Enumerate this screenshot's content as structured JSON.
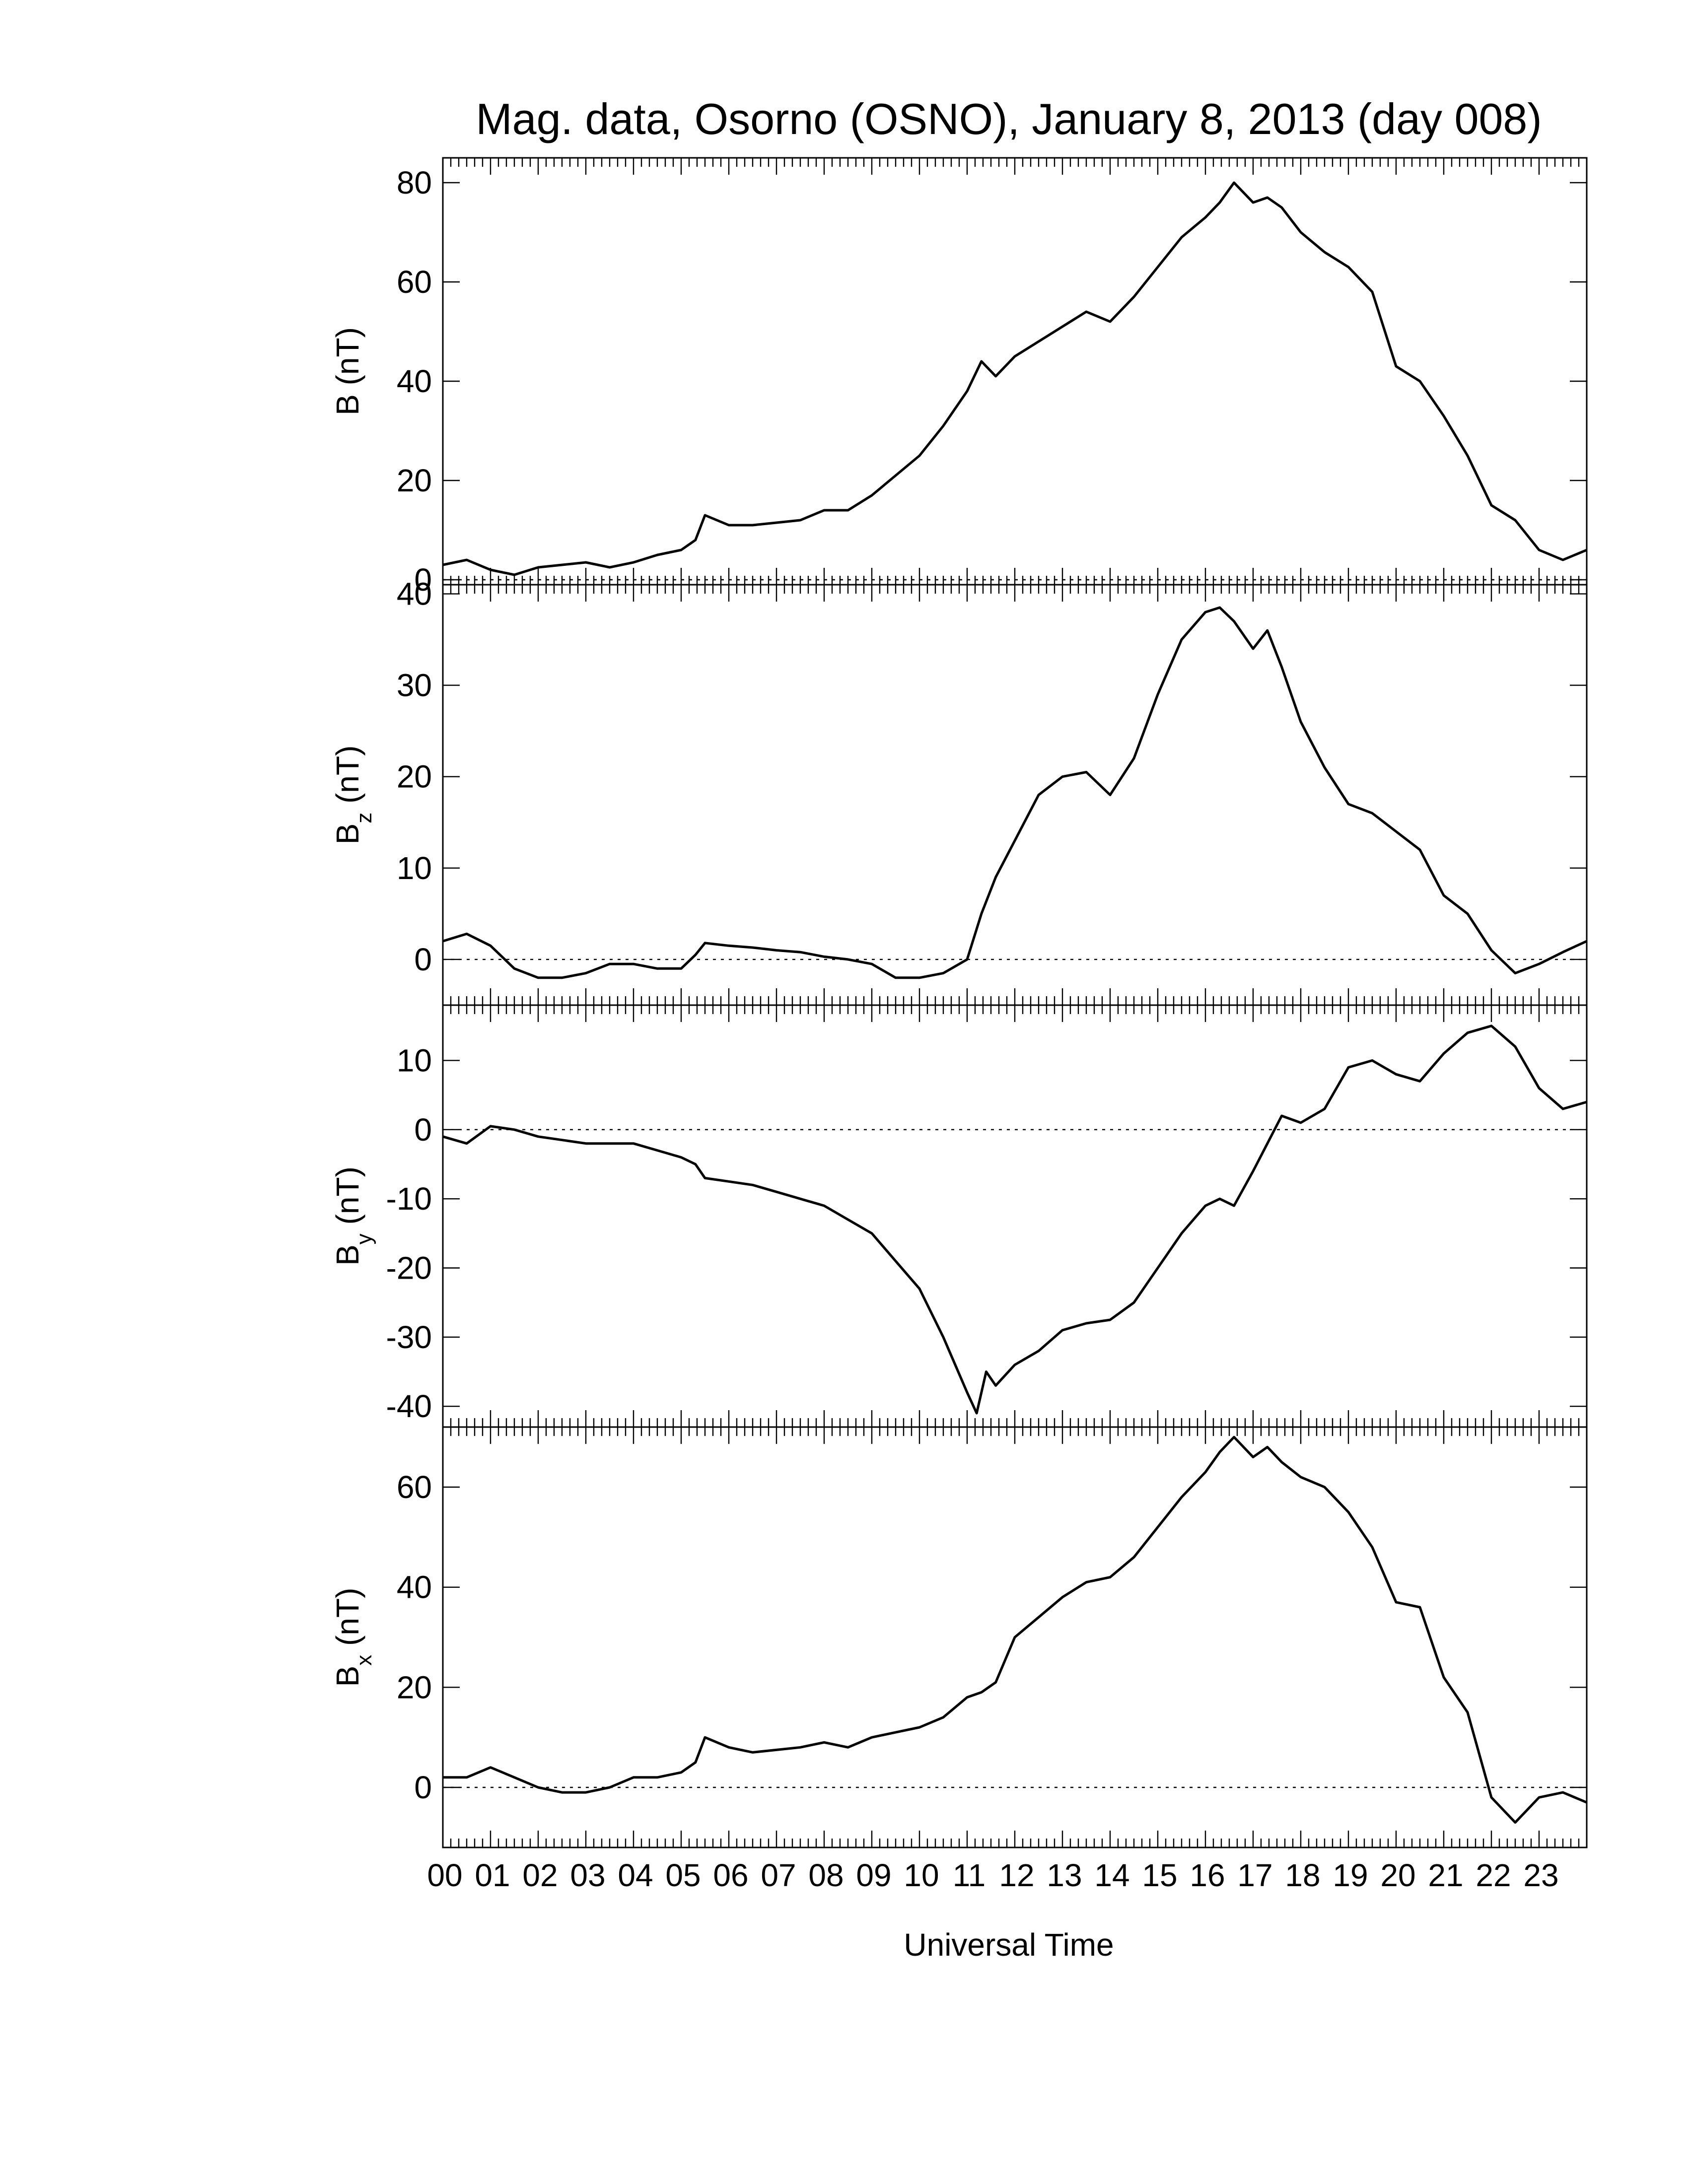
{
  "title": "Mag. data, Osorno (OSNO), January 8, 2013 (day 008)",
  "colors": {
    "line": "#000000",
    "background": "#ffffff",
    "zero_line": "#000000"
  },
  "x_axis": {
    "label": "Universal Time",
    "tick_labels": [
      "00",
      "01",
      "02",
      "03",
      "04",
      "05",
      "06",
      "07",
      "08",
      "09",
      "10",
      "11",
      "12",
      "13",
      "14",
      "15",
      "16",
      "17",
      "18",
      "19",
      "20",
      "21",
      "22",
      "23"
    ],
    "range": [
      0,
      24
    ],
    "unit": "hours"
  },
  "chart_data": [
    {
      "type": "line",
      "ylabel": "B (nT)",
      "ylabel_main": "B",
      "ylabel_sub": "",
      "ylabel_unit": " (nT)",
      "ylim": [
        -1,
        85
      ],
      "yticks": [
        0,
        20,
        40,
        60,
        80
      ],
      "zero_line": true,
      "x": [
        0,
        0.5,
        1,
        1.5,
        2,
        2.5,
        3,
        3.5,
        4,
        4.5,
        5,
        5.3,
        5.5,
        6,
        6.5,
        7,
        7.5,
        8,
        8.5,
        9,
        9.5,
        10,
        10.5,
        11,
        11.3,
        11.6,
        12,
        12.5,
        13,
        13.5,
        14,
        14.5,
        15,
        15.5,
        16,
        16.3,
        16.6,
        17,
        17.3,
        17.6,
        18,
        18.5,
        19,
        19.5,
        20,
        20.5,
        21,
        21.5,
        22,
        22.5,
        23,
        23.5,
        24
      ],
      "values": [
        3,
        4,
        2,
        1,
        2.5,
        3,
        3.5,
        2.5,
        3.5,
        5,
        6,
        8,
        13,
        11,
        11,
        11.5,
        12,
        14,
        14,
        17,
        21,
        25,
        31,
        38,
        44,
        41,
        45,
        48,
        51,
        54,
        52,
        57,
        63,
        69,
        73,
        76,
        80,
        76,
        77,
        75,
        70,
        66,
        63,
        58,
        43,
        40,
        33,
        25,
        15,
        12,
        6,
        4,
        6
      ]
    },
    {
      "type": "line",
      "ylabel": "Bz (nT)",
      "ylabel_main": "B",
      "ylabel_sub": "z",
      "ylabel_unit": " (nT)",
      "ylim": [
        -5,
        41
      ],
      "yticks": [
        0,
        10,
        20,
        30,
        40
      ],
      "zero_line": true,
      "x": [
        0,
        0.5,
        1,
        1.5,
        2,
        2.5,
        3,
        3.5,
        4,
        4.5,
        5,
        5.3,
        5.5,
        6,
        6.5,
        7,
        7.5,
        8,
        8.5,
        9,
        9.5,
        10,
        10.5,
        11,
        11.3,
        11.6,
        12,
        12.5,
        13,
        13.5,
        14,
        14.5,
        15,
        15.5,
        16,
        16.3,
        16.6,
        17,
        17.3,
        17.6,
        18,
        18.5,
        19,
        19.5,
        20,
        20.5,
        21,
        21.5,
        22,
        22.5,
        23,
        23.5,
        24
      ],
      "values": [
        2,
        2.8,
        1.5,
        -1,
        -2,
        -2,
        -1.5,
        -0.5,
        -0.5,
        -1,
        -1,
        0.5,
        1.8,
        1.5,
        1.3,
        1,
        0.8,
        0.3,
        0,
        -0.5,
        -2,
        -2,
        -1.5,
        0,
        5,
        9,
        13,
        18,
        20,
        20.5,
        18,
        22,
        29,
        35,
        38,
        38.5,
        37,
        34,
        36,
        32,
        26,
        21,
        17,
        16,
        14,
        12,
        7,
        5,
        1,
        -1.5,
        -0.5,
        0.8,
        2
      ]
    },
    {
      "type": "line",
      "ylabel": "By (nT)",
      "ylabel_main": "B",
      "ylabel_sub": "y",
      "ylabel_unit": " (nT)",
      "ylim": [
        -43,
        18
      ],
      "yticks": [
        -40,
        -30,
        -20,
        -10,
        0,
        10
      ],
      "zero_line": true,
      "x": [
        0,
        0.5,
        1,
        1.5,
        2,
        2.5,
        3,
        3.5,
        4,
        4.5,
        5,
        5.3,
        5.5,
        6,
        6.5,
        7,
        7.5,
        8,
        8.5,
        9,
        9.5,
        10,
        10.5,
        11,
        11.2,
        11.4,
        11.6,
        12,
        12.5,
        13,
        13.5,
        14,
        14.5,
        15,
        15.5,
        16,
        16.3,
        16.6,
        17,
        17.3,
        17.6,
        18,
        18.5,
        19,
        19.5,
        20,
        20.5,
        21,
        21.5,
        22,
        22.5,
        23,
        23.5,
        24
      ],
      "values": [
        -1,
        -2,
        0.5,
        0,
        -1,
        -1.5,
        -2,
        -2,
        -2,
        -3,
        -4,
        -5,
        -7,
        -7.5,
        -8,
        -9,
        -10,
        -11,
        -13,
        -15,
        -19,
        -23,
        -30,
        -38,
        -41,
        -35,
        -37,
        -34,
        -32,
        -29,
        -28,
        -27.5,
        -25,
        -20,
        -15,
        -11,
        -10,
        -11,
        -6,
        -2,
        2,
        1,
        3,
        9,
        10,
        8,
        7,
        11,
        14,
        15,
        12,
        6,
        3,
        4
      ]
    },
    {
      "type": "line",
      "ylabel": "Bx (nT)",
      "ylabel_main": "B",
      "ylabel_sub": "x",
      "ylabel_unit": " (nT)",
      "ylim": [
        -12,
        72
      ],
      "yticks": [
        0,
        20,
        40,
        60
      ],
      "zero_line": true,
      "x": [
        0,
        0.5,
        1,
        1.5,
        2,
        2.5,
        3,
        3.5,
        4,
        4.5,
        5,
        5.3,
        5.5,
        6,
        6.5,
        7,
        7.5,
        8,
        8.5,
        9,
        9.5,
        10,
        10.5,
        11,
        11.3,
        11.6,
        12,
        12.5,
        13,
        13.5,
        14,
        14.5,
        15,
        15.5,
        16,
        16.3,
        16.6,
        17,
        17.3,
        17.6,
        18,
        18.5,
        19,
        19.5,
        20,
        20.5,
        21,
        21.5,
        22,
        22.5,
        23,
        23.5,
        24
      ],
      "values": [
        2,
        2,
        4,
        2,
        0,
        -1,
        -1,
        0,
        2,
        2,
        3,
        5,
        10,
        8,
        7,
        7.5,
        8,
        9,
        8,
        10,
        11,
        12,
        14,
        18,
        19,
        21,
        30,
        34,
        38,
        41,
        42,
        46,
        52,
        58,
        63,
        67,
        70,
        66,
        68,
        65,
        62,
        60,
        55,
        48,
        37,
        36,
        22,
        15,
        -2,
        -7,
        -2,
        -1,
        -3
      ]
    }
  ]
}
